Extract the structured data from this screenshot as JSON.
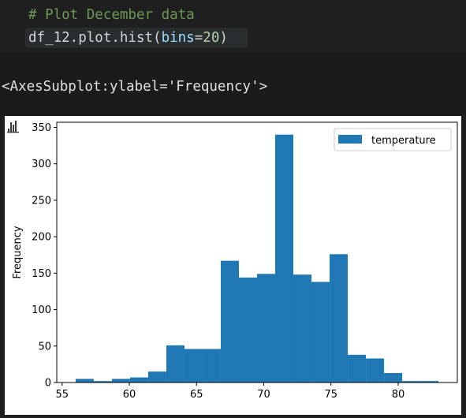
{
  "cell": {
    "comment": "# Plot December data",
    "code_prefix": "df_12.plot.hist(",
    "code_param": "bins",
    "code_eq": "=",
    "code_num": "20",
    "code_suffix": ")"
  },
  "output": {
    "text": "<AxesSubplot:ylabel='Frequency'>"
  },
  "chart_icon": "bar-chart-icon",
  "chart_data": {
    "type": "bar",
    "title": "",
    "xlabel": "",
    "ylabel": "Frequency",
    "xlim": [
      54.6,
      84.4
    ],
    "ylim": [
      0,
      357
    ],
    "xticks": [
      55,
      60,
      65,
      70,
      75,
      80
    ],
    "yticks": [
      0,
      50,
      100,
      150,
      200,
      250,
      300,
      350
    ],
    "bin_edges": [
      56,
      57.35,
      58.7,
      60.05,
      61.4,
      62.75,
      64.1,
      65.45,
      66.8,
      68.15,
      69.5,
      70.85,
      72.2,
      73.55,
      74.9,
      76.25,
      77.6,
      78.95,
      80.3,
      81.65,
      83
    ],
    "series": [
      {
        "name": "temperature",
        "color": "#1f77b4",
        "values": [
          5,
          2,
          5,
          7,
          15,
          51,
          46,
          46,
          167,
          144,
          149,
          340,
          148,
          138,
          176,
          38,
          33,
          13,
          2,
          2
        ]
      }
    ],
    "legend_position": "top-right",
    "grid": false
  }
}
